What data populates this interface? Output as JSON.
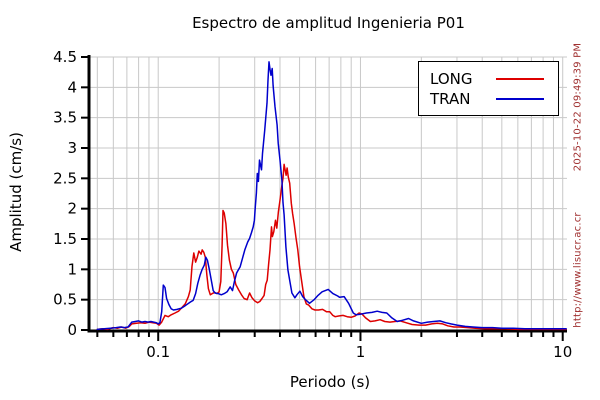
{
  "watermark": {
    "timestamp": "2025-10-22 09:49:39 PM",
    "url": "http://www.lisucr.ac.cr",
    "color": "#a03030"
  },
  "colors": {
    "background": "#ffffff",
    "axis": "#000000",
    "grid": "#c8c8c8",
    "long_line": "#dd0000",
    "tran_line": "#0000cc"
  },
  "chart_data": {
    "type": "line",
    "title": "Espectro de amplitud Ingenieria P01",
    "xlabel": "Periodo (s)",
    "ylabel": "Amplitud (cm/s)",
    "x_scale": "log",
    "xlim": [
      0.046,
      10.5
    ],
    "ylim": [
      0,
      4.5
    ],
    "x_ticks": [
      0.1,
      1,
      10
    ],
    "x_tick_labels": [
      "0.1",
      "1",
      "10"
    ],
    "y_ticks": [
      0,
      0.5,
      1,
      1.5,
      2,
      2.5,
      3,
      3.5,
      4,
      4.5
    ],
    "y_tick_labels": [
      "0",
      "0.5",
      "1",
      "1.5",
      "2",
      "2.5",
      "3",
      "3.5",
      "4",
      "4.5"
    ],
    "grid": true,
    "legend_position": "top-right",
    "series": [
      {
        "name": "LONG",
        "color": "#dd0000",
        "points": [
          [
            0.05,
            0.01
          ],
          [
            0.053,
            0.02
          ],
          [
            0.056,
            0.01
          ],
          [
            0.06,
            0.04
          ],
          [
            0.063,
            0.03
          ],
          [
            0.066,
            0.05
          ],
          [
            0.069,
            0.03
          ],
          [
            0.072,
            0.06
          ],
          [
            0.074,
            0.1
          ],
          [
            0.078,
            0.11
          ],
          [
            0.082,
            0.12
          ],
          [
            0.086,
            0.11
          ],
          [
            0.09,
            0.13
          ],
          [
            0.094,
            0.12
          ],
          [
            0.098,
            0.11
          ],
          [
            0.101,
            0.08
          ],
          [
            0.104,
            0.13
          ],
          [
            0.108,
            0.24
          ],
          [
            0.112,
            0.22
          ],
          [
            0.116,
            0.25
          ],
          [
            0.121,
            0.28
          ],
          [
            0.126,
            0.31
          ],
          [
            0.13,
            0.36
          ],
          [
            0.136,
            0.43
          ],
          [
            0.141,
            0.55
          ],
          [
            0.144,
            0.66
          ],
          [
            0.147,
            1.05
          ],
          [
            0.15,
            1.27
          ],
          [
            0.153,
            1.12
          ],
          [
            0.156,
            1.2
          ],
          [
            0.159,
            1.3
          ],
          [
            0.163,
            1.25
          ],
          [
            0.165,
            1.32
          ],
          [
            0.168,
            1.28
          ],
          [
            0.171,
            1.2
          ],
          [
            0.174,
            0.9
          ],
          [
            0.177,
            0.68
          ],
          [
            0.181,
            0.58
          ],
          [
            0.185,
            0.6
          ],
          [
            0.19,
            0.62
          ],
          [
            0.195,
            0.6
          ],
          [
            0.2,
            0.63
          ],
          [
            0.204,
            0.8
          ],
          [
            0.207,
            1.4
          ],
          [
            0.209,
            1.97
          ],
          [
            0.212,
            1.93
          ],
          [
            0.216,
            1.75
          ],
          [
            0.22,
            1.4
          ],
          [
            0.225,
            1.15
          ],
          [
            0.23,
            1.0
          ],
          [
            0.235,
            0.94
          ],
          [
            0.242,
            0.75
          ],
          [
            0.25,
            0.66
          ],
          [
            0.258,
            0.58
          ],
          [
            0.266,
            0.52
          ],
          [
            0.275,
            0.5
          ],
          [
            0.283,
            0.61
          ],
          [
            0.291,
            0.53
          ],
          [
            0.3,
            0.48
          ],
          [
            0.31,
            0.45
          ],
          [
            0.318,
            0.47
          ],
          [
            0.326,
            0.52
          ],
          [
            0.334,
            0.57
          ],
          [
            0.34,
            0.75
          ],
          [
            0.346,
            0.82
          ],
          [
            0.352,
            1.1
          ],
          [
            0.357,
            1.32
          ],
          [
            0.363,
            1.7
          ],
          [
            0.367,
            1.54
          ],
          [
            0.373,
            1.62
          ],
          [
            0.38,
            1.81
          ],
          [
            0.386,
            1.68
          ],
          [
            0.393,
            1.95
          ],
          [
            0.4,
            2.14
          ],
          [
            0.408,
            2.36
          ],
          [
            0.414,
            2.5
          ],
          [
            0.419,
            2.73
          ],
          [
            0.424,
            2.64
          ],
          [
            0.429,
            2.55
          ],
          [
            0.434,
            2.67
          ],
          [
            0.44,
            2.52
          ],
          [
            0.447,
            2.42
          ],
          [
            0.455,
            2.09
          ],
          [
            0.462,
            1.92
          ],
          [
            0.47,
            1.76
          ],
          [
            0.48,
            1.52
          ],
          [
            0.49,
            1.32
          ],
          [
            0.5,
            1.04
          ],
          [
            0.512,
            0.8
          ],
          [
            0.525,
            0.55
          ],
          [
            0.54,
            0.43
          ],
          [
            0.555,
            0.41
          ],
          [
            0.575,
            0.35
          ],
          [
            0.596,
            0.33
          ],
          [
            0.62,
            0.33
          ],
          [
            0.65,
            0.34
          ],
          [
            0.68,
            0.3
          ],
          [
            0.705,
            0.3
          ],
          [
            0.73,
            0.24
          ],
          [
            0.75,
            0.22
          ],
          [
            0.78,
            0.23
          ],
          [
            0.82,
            0.24
          ],
          [
            0.86,
            0.22
          ],
          [
            0.9,
            0.21
          ],
          [
            0.94,
            0.23
          ],
          [
            0.985,
            0.28
          ],
          [
            1.02,
            0.26
          ],
          [
            1.06,
            0.2
          ],
          [
            1.12,
            0.14
          ],
          [
            1.18,
            0.15
          ],
          [
            1.25,
            0.17
          ],
          [
            1.32,
            0.14
          ],
          [
            1.4,
            0.13
          ],
          [
            1.48,
            0.14
          ],
          [
            1.57,
            0.15
          ],
          [
            1.68,
            0.12
          ],
          [
            1.8,
            0.09
          ],
          [
            1.95,
            0.08
          ],
          [
            2.1,
            0.08
          ],
          [
            2.25,
            0.1
          ],
          [
            2.4,
            0.11
          ],
          [
            2.55,
            0.1
          ],
          [
            2.7,
            0.07
          ],
          [
            2.9,
            0.05
          ],
          [
            3.1,
            0.05
          ],
          [
            3.4,
            0.04
          ],
          [
            3.7,
            0.03
          ],
          [
            4.1,
            0.02
          ],
          [
            4.6,
            0.02
          ],
          [
            5.2,
            0.02
          ],
          [
            6.0,
            0.01
          ],
          [
            7.0,
            0.01
          ],
          [
            8.2,
            0.01
          ],
          [
            9.5,
            0.01
          ],
          [
            10.4,
            0.01
          ]
        ]
      },
      {
        "name": "TRAN",
        "color": "#0000cc",
        "points": [
          [
            0.05,
            0.01
          ],
          [
            0.054,
            0.02
          ],
          [
            0.058,
            0.03
          ],
          [
            0.062,
            0.04
          ],
          [
            0.065,
            0.05
          ],
          [
            0.068,
            0.04
          ],
          [
            0.071,
            0.05
          ],
          [
            0.074,
            0.13
          ],
          [
            0.077,
            0.14
          ],
          [
            0.08,
            0.15
          ],
          [
            0.083,
            0.13
          ],
          [
            0.086,
            0.14
          ],
          [
            0.089,
            0.13
          ],
          [
            0.092,
            0.14
          ],
          [
            0.095,
            0.13
          ],
          [
            0.098,
            0.12
          ],
          [
            0.1,
            0.1
          ],
          [
            0.102,
            0.12
          ],
          [
            0.104,
            0.3
          ],
          [
            0.106,
            0.74
          ],
          [
            0.108,
            0.7
          ],
          [
            0.11,
            0.52
          ],
          [
            0.113,
            0.42
          ],
          [
            0.116,
            0.35
          ],
          [
            0.119,
            0.33
          ],
          [
            0.124,
            0.34
          ],
          [
            0.13,
            0.36
          ],
          [
            0.136,
            0.4
          ],
          [
            0.144,
            0.46
          ],
          [
            0.149,
            0.49
          ],
          [
            0.153,
            0.6
          ],
          [
            0.157,
            0.77
          ],
          [
            0.161,
            0.9
          ],
          [
            0.165,
            1.0
          ],
          [
            0.169,
            1.07
          ],
          [
            0.172,
            1.2
          ],
          [
            0.175,
            1.15
          ],
          [
            0.179,
            1.0
          ],
          [
            0.183,
            0.82
          ],
          [
            0.187,
            0.65
          ],
          [
            0.191,
            0.61
          ],
          [
            0.198,
            0.6
          ],
          [
            0.205,
            0.58
          ],
          [
            0.212,
            0.6
          ],
          [
            0.219,
            0.63
          ],
          [
            0.227,
            0.71
          ],
          [
            0.233,
            0.65
          ],
          [
            0.238,
            0.8
          ],
          [
            0.244,
            0.94
          ],
          [
            0.25,
            1.0
          ],
          [
            0.254,
            1.04
          ],
          [
            0.262,
            1.2
          ],
          [
            0.268,
            1.32
          ],
          [
            0.277,
            1.45
          ],
          [
            0.283,
            1.51
          ],
          [
            0.289,
            1.6
          ],
          [
            0.295,
            1.7
          ],
          [
            0.299,
            1.81
          ],
          [
            0.302,
            2.03
          ],
          [
            0.306,
            2.26
          ],
          [
            0.309,
            2.58
          ],
          [
            0.313,
            2.45
          ],
          [
            0.317,
            2.8
          ],
          [
            0.324,
            2.64
          ],
          [
            0.328,
            2.91
          ],
          [
            0.336,
            3.29
          ],
          [
            0.345,
            3.74
          ],
          [
            0.349,
            4.12
          ],
          [
            0.353,
            4.42
          ],
          [
            0.357,
            4.3
          ],
          [
            0.361,
            4.2
          ],
          [
            0.366,
            4.31
          ],
          [
            0.37,
            4.03
          ],
          [
            0.378,
            3.68
          ],
          [
            0.387,
            3.38
          ],
          [
            0.392,
            3.08
          ],
          [
            0.4,
            2.8
          ],
          [
            0.409,
            2.47
          ],
          [
            0.414,
            2.1
          ],
          [
            0.419,
            1.9
          ],
          [
            0.428,
            1.37
          ],
          [
            0.438,
            0.99
          ],
          [
            0.448,
            0.8
          ],
          [
            0.458,
            0.61
          ],
          [
            0.474,
            0.53
          ],
          [
            0.485,
            0.58
          ],
          [
            0.502,
            0.64
          ],
          [
            0.518,
            0.55
          ],
          [
            0.535,
            0.5
          ],
          [
            0.56,
            0.44
          ],
          [
            0.59,
            0.5
          ],
          [
            0.617,
            0.57
          ],
          [
            0.646,
            0.63
          ],
          [
            0.693,
            0.67
          ],
          [
            0.731,
            0.6
          ],
          [
            0.772,
            0.56
          ],
          [
            0.788,
            0.54
          ],
          [
            0.83,
            0.55
          ],
          [
            0.874,
            0.44
          ],
          [
            0.922,
            0.28
          ],
          [
            0.95,
            0.25
          ],
          [
            1.0,
            0.26
          ],
          [
            1.07,
            0.28
          ],
          [
            1.14,
            0.29
          ],
          [
            1.21,
            0.31
          ],
          [
            1.28,
            0.29
          ],
          [
            1.35,
            0.28
          ],
          [
            1.43,
            0.2
          ],
          [
            1.52,
            0.14
          ],
          [
            1.61,
            0.16
          ],
          [
            1.73,
            0.19
          ],
          [
            1.83,
            0.15
          ],
          [
            2.0,
            0.11
          ],
          [
            2.15,
            0.13
          ],
          [
            2.3,
            0.14
          ],
          [
            2.47,
            0.15
          ],
          [
            2.64,
            0.12
          ],
          [
            2.8,
            0.1
          ],
          [
            3.0,
            0.08
          ],
          [
            3.3,
            0.06
          ],
          [
            3.6,
            0.05
          ],
          [
            4.0,
            0.04
          ],
          [
            4.5,
            0.04
          ],
          [
            5.0,
            0.03
          ],
          [
            5.7,
            0.03
          ],
          [
            6.5,
            0.02
          ],
          [
            7.5,
            0.02
          ],
          [
            8.7,
            0.02
          ],
          [
            10.0,
            0.02
          ],
          [
            10.4,
            0.02
          ]
        ]
      }
    ]
  }
}
